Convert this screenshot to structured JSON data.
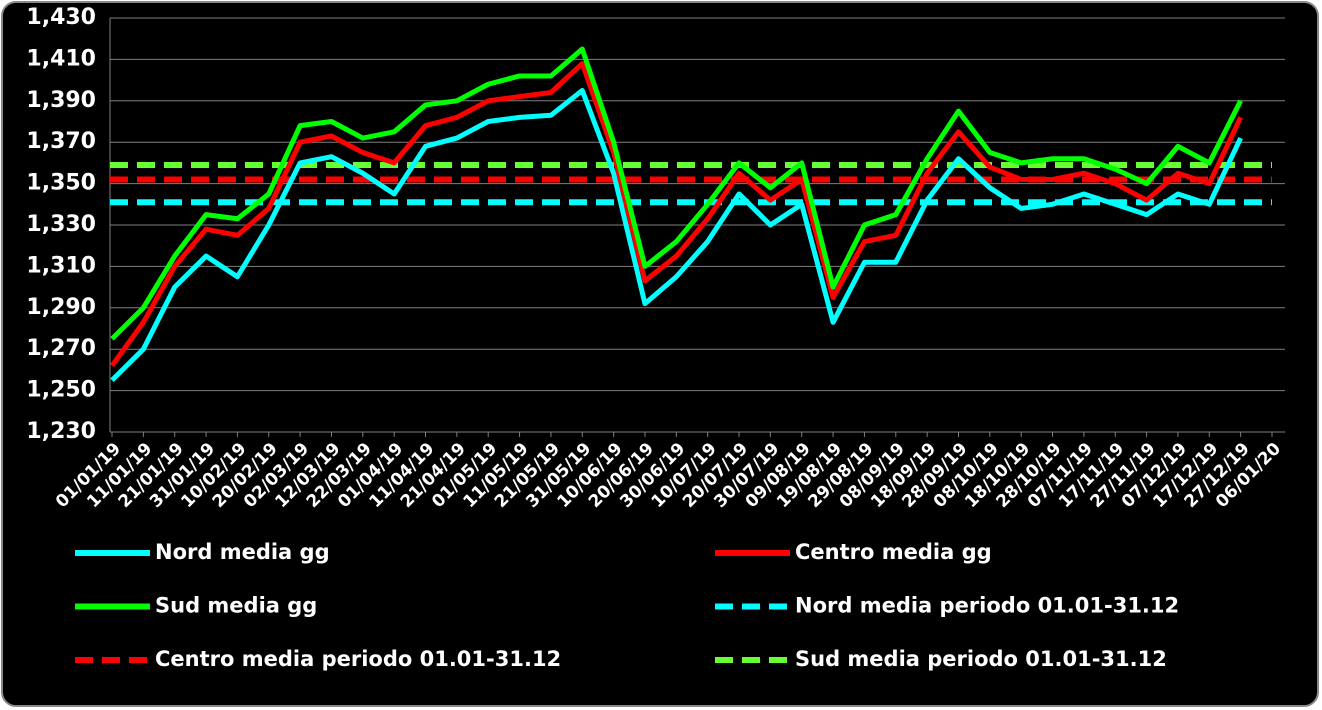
{
  "chart_data": {
    "type": "line",
    "x": [
      "01/01/19",
      "11/01/19",
      "21/01/19",
      "31/01/19",
      "10/02/19",
      "20/02/19",
      "02/03/19",
      "12/03/19",
      "22/03/19",
      "01/04/19",
      "11/04/19",
      "21/04/19",
      "01/05/19",
      "11/05/19",
      "21/05/19",
      "31/05/19",
      "10/06/19",
      "20/06/19",
      "30/06/19",
      "10/07/19",
      "20/07/19",
      "30/07/19",
      "09/08/19",
      "19/08/19",
      "29/08/19",
      "08/09/19",
      "18/09/19",
      "28/09/19",
      "08/10/19",
      "18/10/19",
      "28/10/19",
      "07/11/19",
      "17/11/19",
      "27/11/19",
      "07/12/19",
      "17/12/19",
      "27/12/19"
    ],
    "series": [
      {
        "name": "Nord media gg",
        "color": "#00ffff",
        "values": [
          1255,
          1270,
          1300,
          1315,
          1305,
          1330,
          1360,
          1363,
          1355,
          1345,
          1368,
          1372,
          1380,
          1382,
          1383,
          1395,
          1355,
          1292,
          1305,
          1322,
          1345,
          1330,
          1340,
          1283,
          1312,
          1312,
          1342,
          1362,
          1348,
          1338,
          1340,
          1345,
          1340,
          1335,
          1345,
          1340,
          1372
        ]
      },
      {
        "name": "Centro media gg",
        "color": "#ff0000",
        "values": [
          1262,
          1283,
          1310,
          1328,
          1325,
          1338,
          1370,
          1373,
          1365,
          1360,
          1378,
          1382,
          1390,
          1392,
          1394,
          1408,
          1365,
          1303,
          1315,
          1333,
          1355,
          1342,
          1352,
          1295,
          1322,
          1325,
          1355,
          1375,
          1358,
          1352,
          1352,
          1355,
          1350,
          1342,
          1355,
          1350,
          1382
        ]
      },
      {
        "name": "Sud media gg",
        "color": "#00ff00",
        "values": [
          1275,
          1290,
          1315,
          1335,
          1333,
          1345,
          1378,
          1380,
          1372,
          1375,
          1388,
          1390,
          1398,
          1402,
          1402,
          1415,
          1370,
          1310,
          1322,
          1340,
          1360,
          1348,
          1360,
          1300,
          1330,
          1335,
          1362,
          1385,
          1365,
          1360,
          1362,
          1362,
          1357,
          1350,
          1368,
          1360,
          1390
        ]
      }
    ],
    "references": [
      {
        "name": "Nord media periodo 01.01-31.12",
        "color": "#00ffff",
        "value": 1341
      },
      {
        "name": "Centro media periodo 01.01-31.12",
        "color": "#ff0000",
        "value": 1352
      },
      {
        "name": "Sud media periodo 01.01-31.12",
        "color": "#66ff33",
        "value": 1359
      }
    ],
    "legend_order": [
      [
        "series",
        0
      ],
      [
        "series",
        1
      ],
      [
        "series",
        2
      ],
      [
        "references",
        0
      ],
      [
        "references",
        1
      ],
      [
        "references",
        2
      ]
    ],
    "xlim": [
      "01/01/19",
      "06/01/20"
    ],
    "xticks": [
      "01/01/19",
      "11/01/19",
      "21/01/19",
      "31/01/19",
      "10/02/19",
      "20/02/19",
      "02/03/19",
      "12/03/19",
      "22/03/19",
      "01/04/19",
      "11/04/19",
      "21/04/19",
      "01/05/19",
      "11/05/19",
      "21/05/19",
      "31/05/19",
      "10/06/19",
      "20/06/19",
      "30/06/19",
      "10/07/19",
      "20/07/19",
      "30/07/19",
      "09/08/19",
      "19/08/19",
      "29/08/19",
      "08/09/19",
      "18/09/19",
      "28/09/19",
      "08/10/19",
      "18/10/19",
      "28/10/19",
      "07/11/19",
      "17/11/19",
      "27/11/19",
      "07/12/19",
      "17/12/19",
      "27/12/19",
      "06/01/20"
    ],
    "ylim": [
      1230,
      1430
    ],
    "yticks": [
      {
        "value": 1230,
        "label": "1,230"
      },
      {
        "value": 1250,
        "label": "1,250"
      },
      {
        "value": 1270,
        "label": "1,270"
      },
      {
        "value": 1290,
        "label": "1,290"
      },
      {
        "value": 1310,
        "label": "1,310"
      },
      {
        "value": 1330,
        "label": "1,330"
      },
      {
        "value": 1350,
        "label": "1,350"
      },
      {
        "value": 1370,
        "label": "1,370"
      },
      {
        "value": 1390,
        "label": "1,390"
      },
      {
        "value": 1410,
        "label": "1,410"
      },
      {
        "value": 1430,
        "label": "1,430"
      }
    ],
    "grid": true
  }
}
